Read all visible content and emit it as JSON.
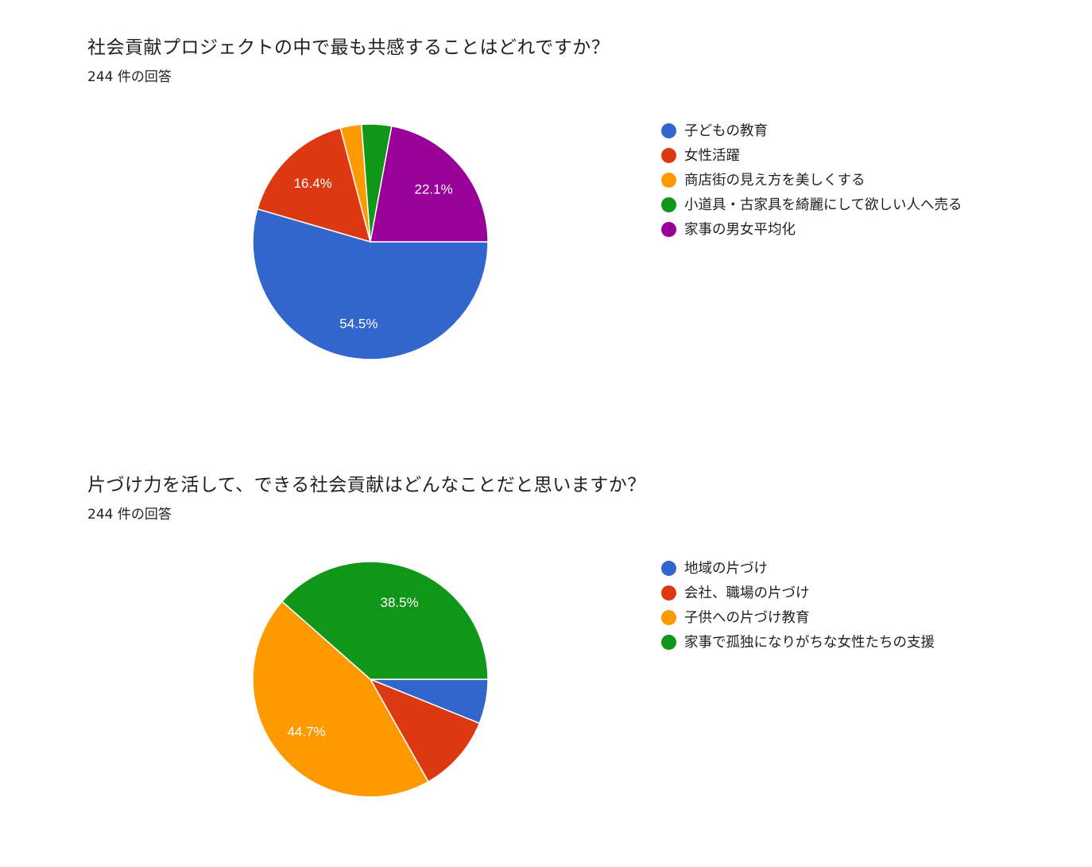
{
  "chart_data": [
    {
      "type": "pie",
      "title": "社会貢献プロジェクトの中で最も共感することはどれですか？",
      "subtitle": "244 件の回答",
      "categories": [
        "子どもの教育",
        "女性活躍",
        "商店街の見え方を美しくする",
        "小道具・古家具を綺麗にして欲しい人へ売る",
        "家事の男女平均化"
      ],
      "values": [
        54.5,
        16.4,
        2.9,
        4.1,
        22.1
      ],
      "labels": [
        "54.5%",
        "16.4%",
        null,
        null,
        "22.1%"
      ],
      "colors": [
        "#3366cc",
        "#dc3912",
        "#ff9900",
        "#109618",
        "#990099"
      ],
      "legend": "right"
    },
    {
      "type": "pie",
      "title": "片づけ力を活して、できる社会貢献はどんなことだと思いますか？",
      "subtitle": "244 件の回答",
      "categories": [
        "地域の片づけ",
        "会社、職場の片づけ",
        "子供への片づけ教育",
        "家事で孤独になりがちな女性たちの支援"
      ],
      "values": [
        6.1,
        10.7,
        44.7,
        38.5
      ],
      "labels": [
        null,
        null,
        "44.7%",
        "38.5%"
      ],
      "colors": [
        "#3366cc",
        "#dc3912",
        "#ff9900",
        "#109618"
      ],
      "legend": "right"
    }
  ]
}
